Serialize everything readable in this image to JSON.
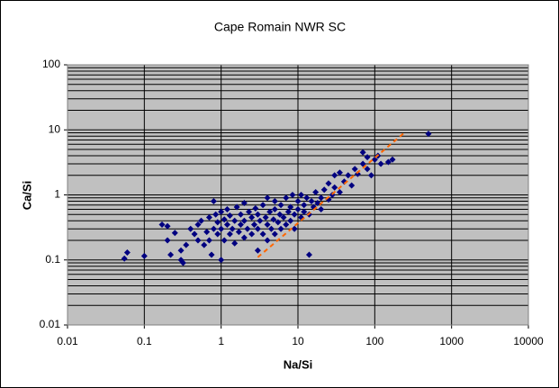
{
  "chart_data": {
    "type": "scatter",
    "title": "Cape Romain NWR SC",
    "x_label": "Na/Si",
    "y_label": "Ca/Si",
    "xscale": "log",
    "yscale": "log",
    "xlim": [
      0.01,
      10000
    ],
    "ylim": [
      0.01,
      100
    ],
    "xticks": [
      0.01,
      0.1,
      1,
      10,
      100,
      1000,
      10000
    ],
    "yticks": [
      0.01,
      0.1,
      1,
      10,
      100
    ],
    "grid": true,
    "y_minor_grid": true,
    "plot_background": "#c0c0c0",
    "series": [
      {
        "color": "#000080",
        "marker": "diamond",
        "x": [
          0.055,
          0.06,
          0.1,
          0.17,
          0.2,
          0.2,
          0.22,
          0.25,
          0.3,
          0.32,
          0.3,
          0.35,
          0.4,
          0.45,
          0.5,
          0.5,
          0.55,
          0.6,
          0.65,
          0.7,
          0.7,
          0.75,
          0.8,
          0.8,
          0.85,
          0.9,
          0.9,
          1,
          1,
          1,
          1.1,
          1.1,
          1.2,
          1.2,
          1.3,
          1.3,
          1.4,
          1.5,
          1.5,
          1.6,
          1.7,
          1.8,
          1.8,
          2,
          2,
          2,
          2.2,
          2.3,
          2.5,
          2.5,
          2.7,
          2.8,
          3,
          3,
          3,
          3.2,
          3.5,
          3.5,
          3.8,
          4,
          4,
          4,
          4.3,
          4.5,
          4.8,
          5,
          5,
          5,
          5.5,
          5.8,
          6,
          6,
          6.5,
          7,
          7,
          7.5,
          8,
          8,
          8.5,
          9,
          9,
          10,
          10,
          11,
          11,
          12,
          12,
          13,
          14,
          14,
          15,
          16,
          17,
          18,
          20,
          20,
          22,
          25,
          25,
          28,
          30,
          30,
          35,
          35,
          40,
          45,
          50,
          55,
          60,
          70,
          70,
          80,
          80,
          90,
          100,
          110,
          120,
          150,
          170,
          500
        ],
        "y": [
          0.105,
          0.13,
          0.115,
          0.35,
          0.33,
          0.2,
          0.12,
          0.26,
          0.1,
          0.09,
          0.14,
          0.17,
          0.3,
          0.25,
          0.2,
          0.35,
          0.4,
          0.17,
          0.27,
          0.45,
          0.2,
          0.12,
          0.3,
          0.8,
          0.5,
          0.25,
          0.38,
          0.1,
          0.3,
          0.55,
          0.2,
          0.42,
          0.35,
          0.6,
          0.25,
          0.48,
          0.3,
          0.18,
          0.4,
          0.65,
          0.27,
          0.35,
          0.5,
          0.22,
          0.4,
          0.75,
          0.3,
          0.55,
          0.25,
          0.45,
          0.35,
          0.62,
          0.14,
          0.3,
          0.5,
          0.4,
          0.25,
          0.7,
          0.45,
          0.2,
          0.35,
          0.9,
          0.55,
          0.3,
          0.42,
          0.25,
          0.6,
          0.8,
          0.38,
          0.5,
          0.3,
          0.7,
          0.45,
          0.35,
          0.9,
          0.55,
          0.4,
          0.65,
          1,
          0.5,
          0.3,
          0.6,
          0.8,
          0.45,
          1,
          0.7,
          0.55,
          0.9,
          0.12,
          0.5,
          0.8,
          0.65,
          1.1,
          0.75,
          0.9,
          0.6,
          1.2,
          0.85,
          1.5,
          1,
          2,
          1.3,
          1.1,
          2.2,
          1.6,
          2,
          1.4,
          2.5,
          2.1,
          3,
          4.5,
          2.5,
          3.8,
          2,
          3.5,
          4,
          3,
          3.2,
          3.5,
          8.7
        ]
      },
      {
        "color": "#ff6600",
        "style": "dashed",
        "x": [
          3,
          250
        ],
        "y": [
          0.11,
          9.3
        ]
      }
    ]
  }
}
